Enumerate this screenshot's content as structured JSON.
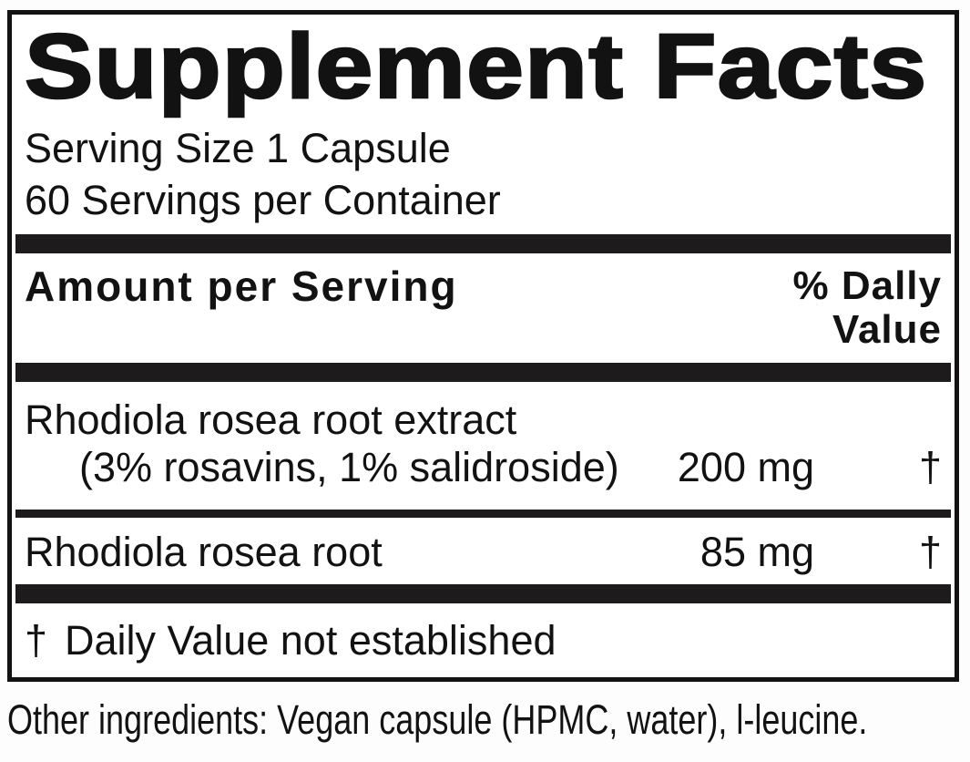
{
  "supplement": {
    "title": "Supplement Facts",
    "serving_size": "Serving Size 1 Capsule",
    "servings_per_container": "60 Servings per Container",
    "header": {
      "amount_col": "Amount per Serving",
      "dv_col_line1": "% Dally",
      "dv_col_line2": "Value"
    },
    "rows": [
      {
        "name_line1": "Rhodiola rosea root extract",
        "name_line2": "(3% rosavins, 1% salidroside)",
        "amount": "200 mg",
        "daily_value": "†"
      },
      {
        "name_line1": "Rhodiola rosea root",
        "amount": "85 mg",
        "daily_value": "†"
      }
    ],
    "footnote": {
      "symbol": "†",
      "text": "Daily Value not established"
    },
    "other_ingredients": "Other ingredients: Vegan capsule (HPMC, water), l-leucine."
  },
  "colors": {
    "ink": "#121212",
    "bar": "#1d1b1b",
    "panel_background": "#ffffff",
    "page_background": "#fdfdfd"
  }
}
